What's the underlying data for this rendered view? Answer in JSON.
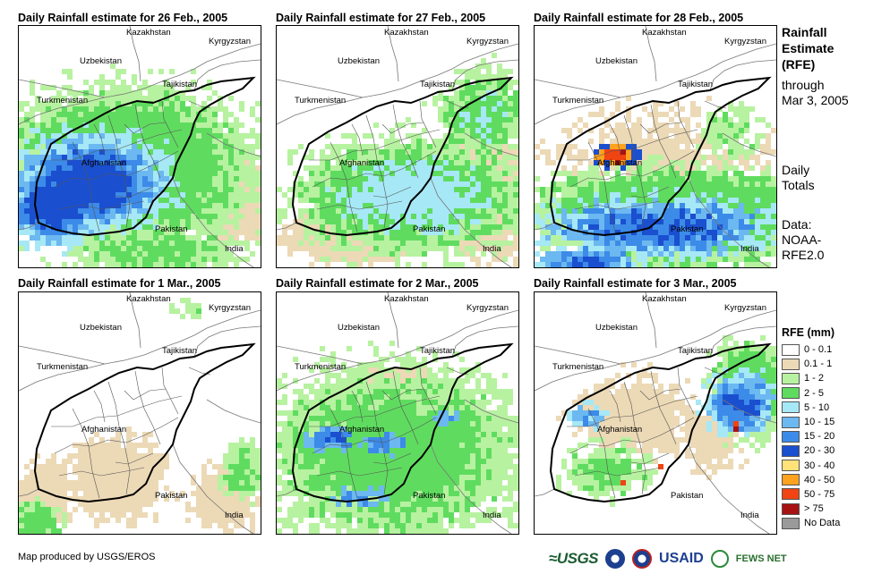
{
  "panels": [
    {
      "title": "Daily Rainfall estimate for 26 Feb., 2005",
      "pattern": "feb26"
    },
    {
      "title": "Daily Rainfall estimate for 27 Feb., 2005",
      "pattern": "feb27"
    },
    {
      "title": "Daily Rainfall estimate for 28 Feb., 2005",
      "pattern": "feb28"
    },
    {
      "title": "Daily Rainfall estimate for 1 Mar., 2005",
      "pattern": "mar1"
    },
    {
      "title": "Daily Rainfall estimate for 2 Mar., 2005",
      "pattern": "mar2"
    },
    {
      "title": "Daily Rainfall estimate for 3 Mar., 2005",
      "pattern": "mar3"
    }
  ],
  "country_labels": {
    "kazakhstan": "Kazakhstan",
    "kyrgyzstan": "Kyrgyzstan",
    "uzbekistan": "Uzbekistan",
    "tajikistan": "Tajikistan",
    "turkmenistan": "Turkmenistan",
    "afghanistan": "Afghanistan",
    "pakistan": "Pakistan",
    "india": "India"
  },
  "side": {
    "title_line1": "Rainfall",
    "title_line2": "Estimate",
    "title_line3": "(RFE)",
    "through": "through",
    "date": "Mar 3, 2005",
    "daily": "Daily",
    "totals": "Totals",
    "data_label": "Data:",
    "source1": "NOAA-",
    "source2": "RFE2.0"
  },
  "legend": {
    "title": "RFE (mm)",
    "items": [
      {
        "label": "0 - 0.1",
        "color": "#ffffff"
      },
      {
        "label": "0.1 - 1",
        "color": "#ecd9b6"
      },
      {
        "label": "1 - 2",
        "color": "#b7f2a0"
      },
      {
        "label": "2 - 5",
        "color": "#5fdc5f"
      },
      {
        "label": "5 - 10",
        "color": "#a6e8f6"
      },
      {
        "label": "10 - 15",
        "color": "#6cb8f0"
      },
      {
        "label": "15 - 20",
        "color": "#3c8be8"
      },
      {
        "label": "20 - 30",
        "color": "#1a4fd0"
      },
      {
        "label": "30 - 40",
        "color": "#ffe27a"
      },
      {
        "label": "40 - 50",
        "color": "#ffa21e"
      },
      {
        "label": "50 - 75",
        "color": "#f04412"
      },
      {
        "label": "> 75",
        "color": "#a81212"
      },
      {
        "label": "No Data",
        "color": "#9a9a9a"
      }
    ]
  },
  "credit": "Map produced by USGS/EROS",
  "logos": {
    "usgs": "≈USGS",
    "usaid": "USAID",
    "fews": "FEWS NET"
  }
}
